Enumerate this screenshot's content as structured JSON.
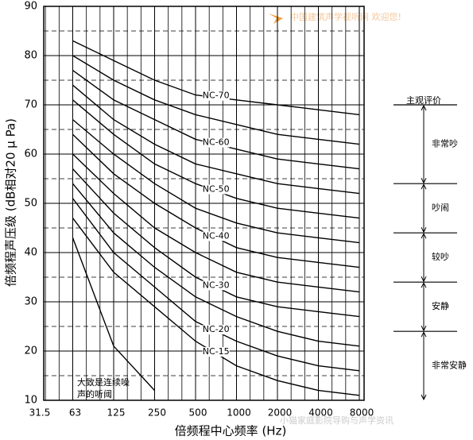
{
  "chart_data": {
    "type": "line",
    "x_label": "倍频程中心频率 (Hz)",
    "y_label": "倍频程声压级 (dB相对20 μ Pa)",
    "categories": [
      "31.5",
      "63",
      "125",
      "250",
      "500",
      "1000",
      "2000",
      "4000",
      "8000"
    ],
    "ylim": [
      10,
      90
    ],
    "yticks": [
      10,
      20,
      30,
      40,
      50,
      60,
      70,
      80,
      90
    ],
    "minor_yticks": [
      15,
      25,
      35,
      45,
      55,
      65,
      75,
      85
    ],
    "series": [
      {
        "name": "NC-70",
        "color": "#000000",
        "values": [
          null,
          83,
          79,
          75,
          72,
          71,
          70,
          69,
          68
        ]
      },
      {
        "color": "#000000",
        "values": [
          null,
          80,
          75,
          71,
          68,
          66,
          64,
          63,
          62
        ]
      },
      {
        "name": "NC-60",
        "color": "#000000",
        "values": [
          null,
          77,
          71,
          67,
          63,
          61,
          59,
          58,
          57
        ]
      },
      {
        "color": "#000000",
        "values": [
          null,
          74,
          67,
          62,
          58,
          56,
          54,
          53,
          52
        ]
      },
      {
        "name": "NC-50",
        "color": "#000000",
        "values": [
          null,
          71,
          64,
          58,
          54,
          51,
          49,
          48,
          47
        ]
      },
      {
        "color": "#000000",
        "values": [
          null,
          67,
          60,
          54,
          49,
          46,
          44,
          43,
          42
        ]
      },
      {
        "name": "NC-40",
        "color": "#000000",
        "values": [
          null,
          64,
          56,
          50,
          45,
          41,
          39,
          38,
          37
        ]
      },
      {
        "color": "#000000",
        "values": [
          null,
          60,
          52,
          45,
          40,
          36,
          34,
          33,
          32
        ]
      },
      {
        "name": "NC-30",
        "color": "#000000",
        "values": [
          null,
          57,
          48,
          41,
          35,
          31,
          29,
          28,
          27
        ]
      },
      {
        "color": "#000000",
        "values": [
          null,
          54,
          44,
          37,
          31,
          27,
          24,
          22,
          21
        ]
      },
      {
        "name": "NC-20",
        "color": "#000000",
        "values": [
          null,
          51,
          40,
          33,
          26,
          22,
          19,
          17,
          16
        ]
      },
      {
        "name": "NC-15",
        "color": "#000000",
        "values": [
          null,
          47,
          36,
          29,
          22,
          17,
          14,
          12,
          11
        ]
      },
      {
        "color": "#000000",
        "values": [
          null,
          43,
          21,
          12,
          null,
          null,
          null,
          null,
          null
        ]
      }
    ],
    "annotation": [
      "大致是连续噪",
      "声的听阈"
    ],
    "rating_scale": {
      "title": "主观评价",
      "levels": [
        {
          "label": "非常吵",
          "range": [
            54,
            70
          ]
        },
        {
          "label": "吵闹",
          "range": [
            44,
            54
          ]
        },
        {
          "label": "较吵",
          "range": [
            34,
            44
          ]
        },
        {
          "label": "安静",
          "range": [
            24,
            34
          ]
        },
        {
          "label": "非常安静",
          "range": [
            10,
            24
          ]
        }
      ]
    }
  },
  "watermarks": [
    "中国建筑声学视听网 欢迎您!",
    "小猫家庭影院导购与声学资讯"
  ]
}
